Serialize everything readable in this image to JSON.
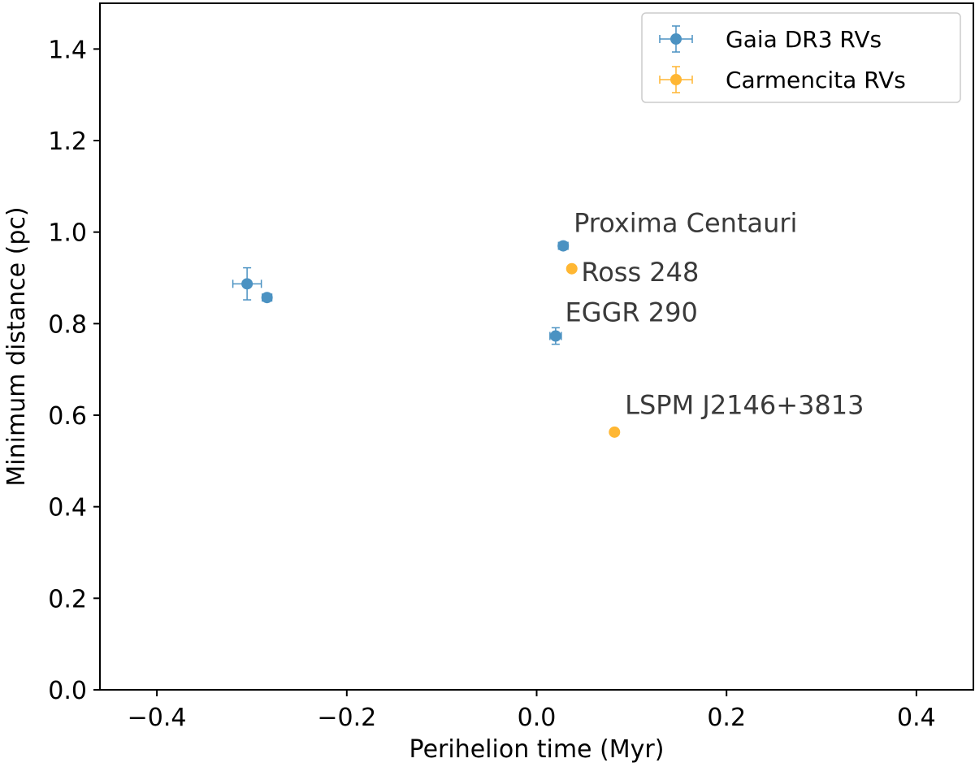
{
  "chart_data": {
    "type": "scatter",
    "xlabel": "Perihelion time (Myr)",
    "ylabel": "Minimum distance (pc)",
    "xlim": [
      -0.46,
      0.46
    ],
    "ylim": [
      0.0,
      1.5
    ],
    "xticks": [
      -0.4,
      -0.2,
      0.0,
      0.2,
      0.4
    ],
    "xtick_labels": [
      "−0.4",
      "−0.2",
      "0.0",
      "0.2",
      "0.4"
    ],
    "yticks": [
      0.0,
      0.2,
      0.4,
      0.6,
      0.8,
      1.0,
      1.2,
      1.4
    ],
    "ytick_labels": [
      "0.0",
      "0.2",
      "0.4",
      "0.6",
      "0.8",
      "1.0",
      "1.2",
      "1.4"
    ],
    "grid": false,
    "legend_position": "top-right",
    "series": [
      {
        "name": "Gaia DR3 RVs",
        "color": "#1f77b4",
        "points": [
          {
            "x": -0.305,
            "y": 0.887,
            "xerr": 0.015,
            "yerr": 0.035
          },
          {
            "x": -0.284,
            "y": 0.857,
            "xerr": 0.005,
            "yerr": 0.008
          },
          {
            "x": 0.028,
            "y": 0.97,
            "xerr": 0.005,
            "yerr": 0.008
          },
          {
            "x": 0.02,
            "y": 0.773,
            "xerr": 0.006,
            "yerr": 0.018
          }
        ]
      },
      {
        "name": "Carmencita RVs",
        "color": "#ffa500",
        "points": [
          {
            "x": 0.037,
            "y": 0.92,
            "xerr": 0,
            "yerr": 0
          },
          {
            "x": 0.082,
            "y": 0.563,
            "xerr": 0,
            "yerr": 0
          }
        ]
      }
    ],
    "annotations": [
      {
        "text": "Proxima Centauri",
        "x": 0.039,
        "y": 1.0
      },
      {
        "text": "Ross 248",
        "x": 0.047,
        "y": 0.893
      },
      {
        "text": "EGGR 290",
        "x": 0.03,
        "y": 0.805
      },
      {
        "text": "LSPM J2146+3813",
        "x": 0.093,
        "y": 0.603
      }
    ]
  }
}
